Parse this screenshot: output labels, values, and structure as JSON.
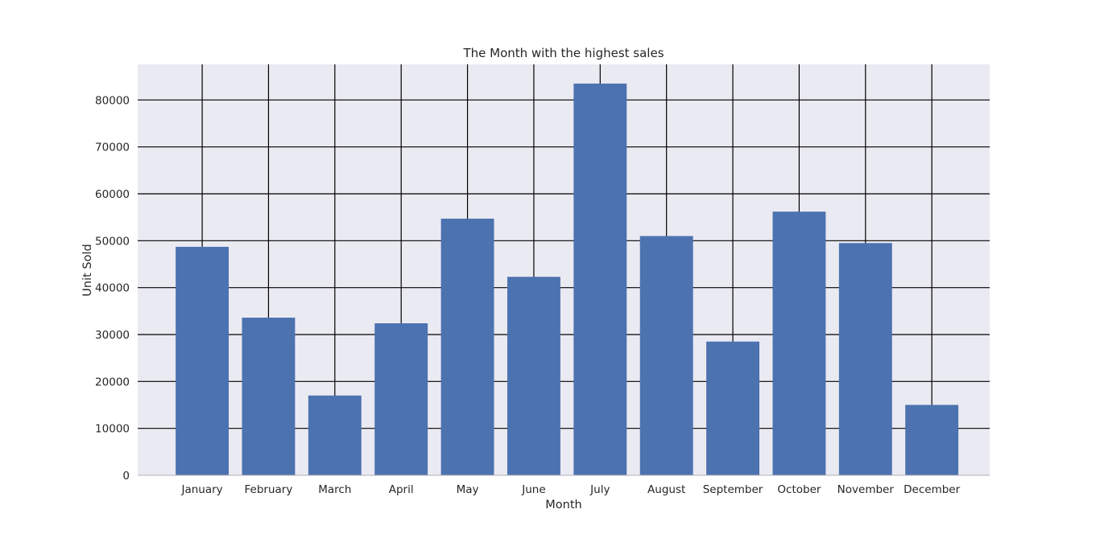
{
  "chart_data": {
    "type": "bar",
    "title": "The Month with the highest sales",
    "xlabel": "Month",
    "ylabel": "Unit Sold",
    "categories": [
      "January",
      "February",
      "March",
      "April",
      "May",
      "June",
      "July",
      "August",
      "September",
      "October",
      "November",
      "December"
    ],
    "values": [
      48700,
      33600,
      17000,
      32400,
      54700,
      42300,
      83500,
      51000,
      28500,
      56200,
      49500,
      15000
    ],
    "ylim": [
      0,
      87600
    ],
    "yticks": [
      0,
      10000,
      20000,
      30000,
      40000,
      50000,
      60000,
      70000,
      80000
    ],
    "grid": true,
    "bar_color": "#4c72b0",
    "plot_background": "#eaeaf2",
    "grid_color": "#000000"
  }
}
